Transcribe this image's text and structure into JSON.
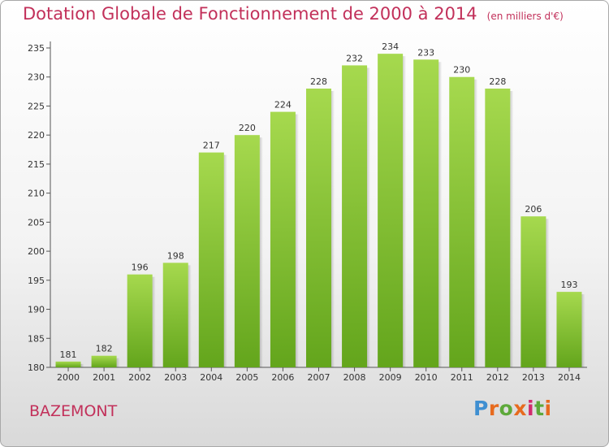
{
  "title": "Dotation Globale de Fonctionnement de 2000 à 2014",
  "unit_note": "(en milliers d'€)",
  "commune": "BAZEMONT",
  "logo_text": "Proxiti",
  "colors": {
    "title": "#c2305a",
    "bar_light": "#a6d94e",
    "bar_dark": "#63a51c",
    "logo_letters": [
      "#3f8fd1",
      "#e76b1f",
      "#5da93a",
      "#e76b1f",
      "#d12c6e",
      "#5da93a",
      "#e76b1f"
    ]
  },
  "chart_data": {
    "type": "bar",
    "title": "Dotation Globale de Fonctionnement de 2000 à 2014",
    "subtitle": "(en milliers d'€)",
    "categories": [
      "2000",
      "2001",
      "2002",
      "2003",
      "2004",
      "2005",
      "2006",
      "2007",
      "2008",
      "2009",
      "2010",
      "2011",
      "2012",
      "2013",
      "2014"
    ],
    "values": [
      181,
      182,
      196,
      198,
      217,
      220,
      224,
      228,
      232,
      234,
      233,
      230,
      228,
      206,
      193
    ],
    "ylim": [
      180,
      235
    ],
    "yticks": [
      180,
      185,
      190,
      195,
      200,
      205,
      210,
      215,
      220,
      225,
      230,
      235
    ],
    "grid": false,
    "legend": "none"
  }
}
